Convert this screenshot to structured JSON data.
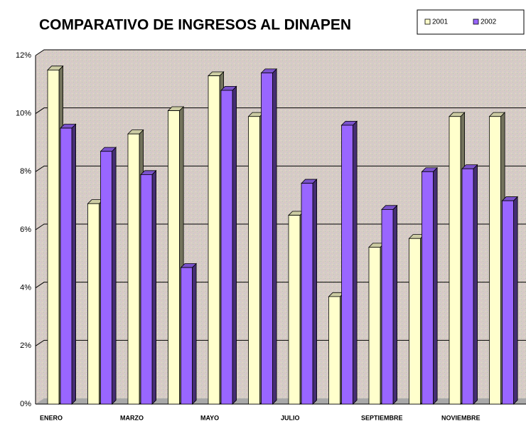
{
  "chart_data": {
    "type": "bar",
    "title": "COMPARATIVO DE INGRESOS AL DINAPEN",
    "categories": [
      "ENERO",
      null,
      "MARZO",
      null,
      "MAYO",
      null,
      "JULIO",
      null,
      "SEPTIEMBRE",
      null,
      "NOVIEMBRE",
      null
    ],
    "series": [
      {
        "name": "2001",
        "color": "#ffffcc",
        "values": [
          11.5,
          6.9,
          9.3,
          10.1,
          11.3,
          9.9,
          6.5,
          3.7,
          5.4,
          5.7,
          9.9,
          9.9
        ]
      },
      {
        "name": "2002",
        "color": "#9966ff",
        "values": [
          9.5,
          8.7,
          7.9,
          4.7,
          10.8,
          11.4,
          7.6,
          9.6,
          6.7,
          8.0,
          8.1,
          7.0
        ]
      }
    ],
    "ylim": [
      0,
      12
    ],
    "yticks": [
      {
        "value": 0,
        "label": "0%"
      },
      {
        "value": 2,
        "label": "2%"
      },
      {
        "value": 4,
        "label": "4%"
      },
      {
        "value": 6,
        "label": "6%"
      },
      {
        "value": 8,
        "label": "8%"
      },
      {
        "value": 10,
        "label": "10%"
      },
      {
        "value": 12,
        "label": "12%"
      }
    ],
    "grid": true,
    "legend": "top-right"
  }
}
